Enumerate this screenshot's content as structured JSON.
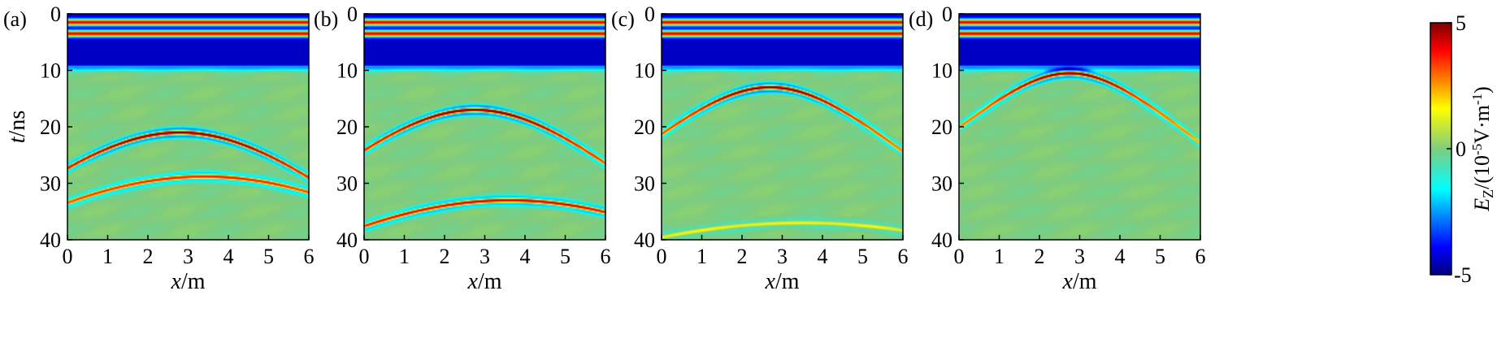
{
  "chart_data": [
    {
      "type": "heatmap",
      "panel_label": "(a)",
      "xlabel_var": "x",
      "xlabel_unit": "/m",
      "ylabel_var": "t",
      "ylabel_unit": "/ns",
      "xlim": [
        0,
        6
      ],
      "ylim": [
        0,
        40
      ],
      "xticks": [
        "0",
        "1",
        "2",
        "3",
        "4",
        "5",
        "6"
      ],
      "yticks": [
        "0",
        "10",
        "20",
        "30",
        "40"
      ],
      "direct_wave": {
        "bands_ns": [
          1.5,
          3.5
        ],
        "dark_until_ns": 9.5
      },
      "hyperbolas": [
        {
          "apex_x_m": 2.8,
          "apex_t_ns": 21.0,
          "velocity_m_per_ns": 0.16,
          "amplitude": 1.0
        },
        {
          "apex_x_m": 3.4,
          "apex_t_ns": 28.8,
          "velocity_m_per_ns": 0.2,
          "amplitude": 0.7
        }
      ]
    },
    {
      "type": "heatmap",
      "panel_label": "(b)",
      "xlabel_var": "x",
      "xlabel_unit": "/m",
      "xlim": [
        0,
        6
      ],
      "ylim": [
        0,
        40
      ],
      "xticks": [
        "0",
        "1",
        "2",
        "3",
        "4",
        "5",
        "6"
      ],
      "yticks": [
        "0",
        "10",
        "20",
        "30",
        "40"
      ],
      "direct_wave": {
        "bands_ns": [
          1.5,
          3.5
        ],
        "dark_until_ns": 9.5
      },
      "hyperbolas": [
        {
          "apex_x_m": 2.75,
          "apex_t_ns": 17.0,
          "velocity_m_per_ns": 0.16,
          "amplitude": 1.0
        },
        {
          "apex_x_m": 3.6,
          "apex_t_ns": 33.0,
          "velocity_m_per_ns": 0.2,
          "amplitude": 0.8
        }
      ]
    },
    {
      "type": "heatmap",
      "panel_label": "(c)",
      "xlabel_var": "x",
      "xlabel_unit": "/m",
      "xlim": [
        0,
        6
      ],
      "ylim": [
        0,
        40
      ],
      "xticks": [
        "0",
        "1",
        "2",
        "3",
        "4",
        "5",
        "6"
      ],
      "yticks": [
        "0",
        "10",
        "20",
        "30",
        "40"
      ],
      "direct_wave": {
        "bands_ns": [
          1.5,
          3.5
        ],
        "dark_until_ns": 9.5
      },
      "hyperbolas": [
        {
          "apex_x_m": 2.7,
          "apex_t_ns": 13.0,
          "velocity_m_per_ns": 0.16,
          "amplitude": 1.0
        },
        {
          "apex_x_m": 3.5,
          "apex_t_ns": 37.0,
          "velocity_m_per_ns": 0.25,
          "amplitude": 0.25
        }
      ]
    },
    {
      "type": "heatmap",
      "panel_label": "(d)",
      "xlabel_var": "x",
      "xlabel_unit": "/m",
      "xlim": [
        0,
        6
      ],
      "ylim": [
        0,
        40
      ],
      "xticks": [
        "0",
        "1",
        "2",
        "3",
        "4",
        "5",
        "6"
      ],
      "yticks": [
        "0",
        "10",
        "20",
        "30",
        "40"
      ],
      "direct_wave": {
        "bands_ns": [
          1.5,
          3.5
        ],
        "dark_until_ns": 9.5
      },
      "hyperbolas": [
        {
          "apex_x_m": 2.75,
          "apex_t_ns": 10.5,
          "velocity_m_per_ns": 0.16,
          "amplitude": 1.0
        }
      ]
    }
  ],
  "colorbar": {
    "label_var": "E",
    "label_sub": "Z",
    "label_rest": "/(10",
    "label_exp": "-5",
    "label_unit": "V·m",
    "label_unit_exp": "-1",
    "label_close": ")",
    "min": -5,
    "max": 5,
    "ticks": [
      "5",
      "0",
      "-5"
    ],
    "colormap": "jet",
    "colors": [
      "#00007f",
      "#0000ff",
      "#00ffff",
      "#7fcc7f",
      "#ffff00",
      "#ff0000",
      "#7f0000"
    ]
  }
}
